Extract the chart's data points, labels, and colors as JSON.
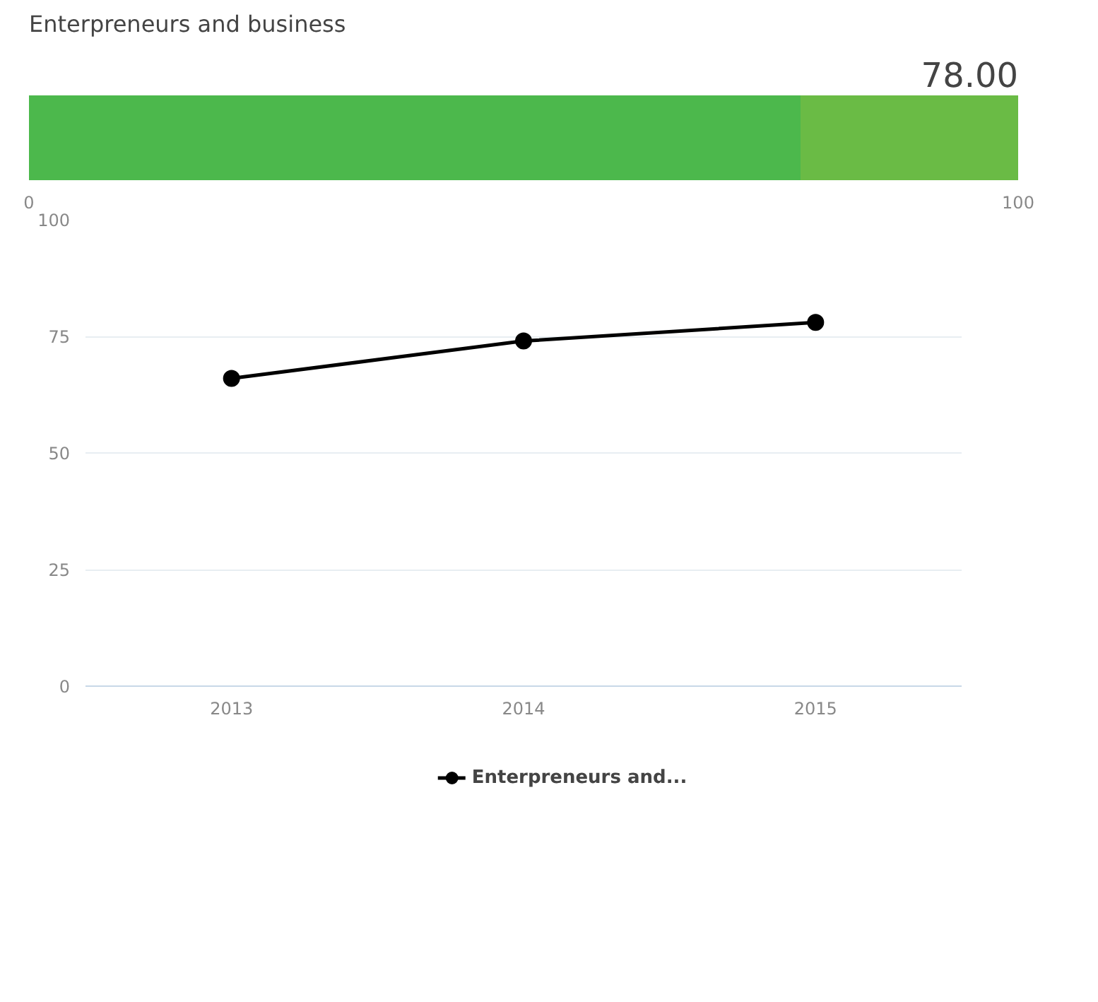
{
  "chart_data": [
    {
      "type": "bar",
      "orientation": "horizontal",
      "stacked": true,
      "title": "Enterpreneurs and business",
      "annotations": [
        "78.00"
      ],
      "categories": [
        null
      ],
      "series": [
        {
          "color": "#4cb84c",
          "values": [
            78
          ]
        },
        {
          "color": "#6abb45",
          "values": [
            22
          ]
        }
      ],
      "xlim": [
        0,
        100
      ],
      "xticks": [
        0,
        100
      ],
      "tick_labels": "x"
    },
    {
      "type": "line",
      "categories": [
        "2013",
        "2014",
        "2015"
      ],
      "series": [
        {
          "name": "Enterpreneurs and...",
          "color": "#000000",
          "values": [
            66,
            74,
            78
          ]
        }
      ],
      "ylim": [
        0,
        100
      ],
      "yticks": [
        0,
        25,
        50,
        75,
        100
      ],
      "grid": "y",
      "legend": "bottom",
      "marker": "circle"
    }
  ]
}
